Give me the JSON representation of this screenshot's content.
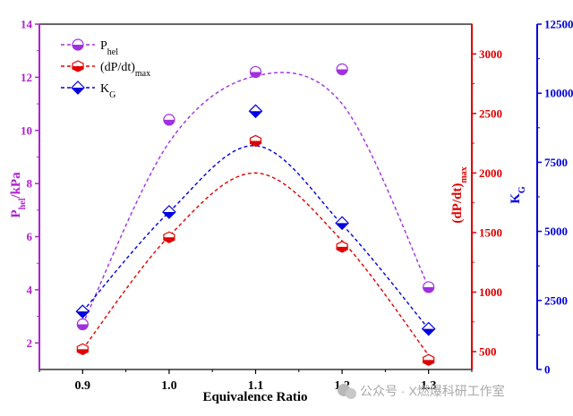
{
  "chart_data": {
    "type": "scatter",
    "xlabel": "Equivalence Ratio",
    "x": [
      0.9,
      1.0,
      1.1,
      1.2,
      1.3
    ],
    "x_ticks": [
      "0.9",
      "1.0",
      "1.1",
      "1.2",
      "1.3"
    ],
    "xlim": [
      0.85,
      1.35
    ],
    "axes": {
      "left": {
        "label_main": "P",
        "label_sub": "hel",
        "label_rest": "/kPa",
        "ylim": [
          1,
          14
        ],
        "ticks": [
          "2",
          "4",
          "6",
          "8",
          "10",
          "12",
          "14"
        ],
        "color": "#b020d0"
      },
      "middle": {
        "label_main": "(dP/dt)",
        "label_sub": "max",
        "ylim": [
          350,
          3250
        ],
        "ticks": [
          "500",
          "1000",
          "1500",
          "2000",
          "2500",
          "3000"
        ],
        "color": "#e00000"
      },
      "right": {
        "label_main": "K",
        "label_sub": "G",
        "ylim": [
          0,
          12500
        ],
        "ticks": [
          "0",
          "2500",
          "5000",
          "7500",
          "10000",
          "12500"
        ],
        "color": "#0000e0"
      }
    },
    "series": [
      {
        "name_main": "P",
        "name_sub": "hel",
        "axis": "left",
        "marker": "circle-half",
        "color": "#a030e0",
        "values": [
          2.7,
          10.4,
          12.2,
          12.3,
          4.1
        ],
        "fit": [
          2.7,
          9.55,
          12.05,
          11.0,
          4.1
        ]
      },
      {
        "name_main": "(dP/dt)",
        "name_sub": "max",
        "axis": "middle",
        "marker": "hexagon-half",
        "color": "#e00000",
        "values": [
          520,
          1460,
          2270,
          1380,
          430
        ],
        "fit": [
          520,
          1470,
          2000,
          1430,
          470
        ]
      },
      {
        "name_main": "K",
        "name_sub": "G",
        "axis": "right",
        "marker": "diamond-half",
        "color": "#0000e0",
        "values": [
          2100,
          5700,
          9350,
          5300,
          1470
        ],
        "fit": [
          2100,
          5700,
          8100,
          5250,
          1470
        ]
      }
    ],
    "legend_position": "top-left",
    "grid": false
  },
  "watermark": {
    "text": "公众号 · X燃爆科研工作室"
  }
}
